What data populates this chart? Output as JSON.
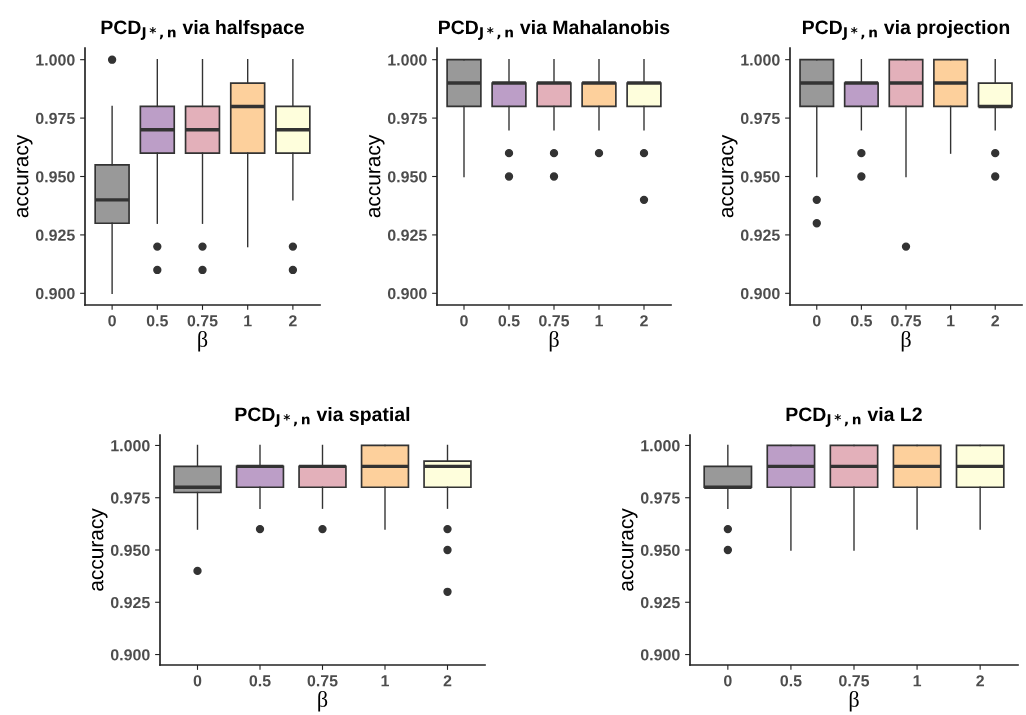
{
  "chart_data": [
    {
      "type": "box",
      "title": "PCD$_{J*,n}$ via halfspace",
      "xlabel": "β",
      "ylabel": "accuracy",
      "categories": [
        "0",
        "0.5",
        "0.75",
        "1",
        "2"
      ],
      "colors": [
        "#999999",
        "#bc9ec7",
        "#e3b0ba",
        "#fdd09c",
        "#fefedc"
      ],
      "ylim": [
        0.895,
        1.005
      ],
      "yticks": [
        {
          "value": 0.9,
          "label": "0.900"
        },
        {
          "value": 0.925,
          "label": "0.925"
        },
        {
          "value": 0.95,
          "label": "0.950"
        },
        {
          "value": 0.975,
          "label": "0.975"
        },
        {
          "value": 1.0,
          "label": "1.000"
        }
      ],
      "grid": false,
      "boxes": [
        {
          "low": 0.9,
          "q1": 0.93,
          "median": 0.94,
          "q3": 0.955,
          "high": 0.98,
          "outliers": [
            1.0
          ]
        },
        {
          "low": 0.93,
          "q1": 0.96,
          "median": 0.97,
          "q3": 0.98,
          "high": 1.0,
          "outliers": [
            0.92,
            0.91
          ]
        },
        {
          "low": 0.93,
          "q1": 0.96,
          "median": 0.97,
          "q3": 0.98,
          "high": 1.0,
          "outliers": [
            0.92,
            0.91
          ]
        },
        {
          "low": 0.92,
          "q1": 0.96,
          "median": 0.98,
          "q3": 0.99,
          "high": 1.0
        },
        {
          "low": 0.94,
          "q1": 0.96,
          "median": 0.97,
          "q3": 0.98,
          "high": 1.0,
          "outliers": [
            0.92,
            0.91
          ]
        }
      ]
    },
    {
      "type": "box",
      "title": "PCD$_{J*,n}$ via Mahalanobis",
      "xlabel": "β",
      "ylabel": "accuracy",
      "categories": [
        "0",
        "0.5",
        "0.75",
        "1",
        "2"
      ],
      "colors": [
        "#999999",
        "#bc9ec7",
        "#e3b0ba",
        "#fdd09c",
        "#fefedc"
      ],
      "ylim": [
        0.895,
        1.005
      ],
      "yticks": [
        {
          "value": 0.9,
          "label": "0.900"
        },
        {
          "value": 0.925,
          "label": "0.925"
        },
        {
          "value": 0.95,
          "label": "0.950"
        },
        {
          "value": 0.975,
          "label": "0.975"
        },
        {
          "value": 1.0,
          "label": "1.000"
        }
      ],
      "grid": false,
      "boxes": [
        {
          "low": 0.95,
          "q1": 0.98,
          "median": 0.99,
          "q3": 1.0,
          "high": 1.0
        },
        {
          "low": 0.97,
          "q1": 0.98,
          "median": 0.99,
          "q3": 0.99,
          "high": 1.0,
          "outliers": [
            0.96,
            0.95
          ]
        },
        {
          "low": 0.97,
          "q1": 0.98,
          "median": 0.99,
          "q3": 0.99,
          "high": 1.0,
          "outliers": [
            0.96,
            0.95
          ]
        },
        {
          "low": 0.97,
          "q1": 0.98,
          "median": 0.99,
          "q3": 0.99,
          "high": 1.0,
          "outliers": [
            0.96
          ]
        },
        {
          "low": 0.97,
          "q1": 0.98,
          "median": 0.99,
          "q3": 0.99,
          "high": 1.0,
          "outliers": [
            0.96,
            0.94
          ]
        }
      ]
    },
    {
      "type": "box",
      "title": "PCD$_{J*,n}$ via projection",
      "xlabel": "β",
      "ylabel": "accuracy",
      "categories": [
        "0",
        "0.5",
        "0.75",
        "1",
        "2"
      ],
      "colors": [
        "#999999",
        "#bc9ec7",
        "#e3b0ba",
        "#fdd09c",
        "#fefedc"
      ],
      "ylim": [
        0.895,
        1.005
      ],
      "yticks": [
        {
          "value": 0.9,
          "label": "0.900"
        },
        {
          "value": 0.925,
          "label": "0.925"
        },
        {
          "value": 0.95,
          "label": "0.950"
        },
        {
          "value": 0.975,
          "label": "0.975"
        },
        {
          "value": 1.0,
          "label": "1.000"
        }
      ],
      "grid": false,
      "boxes": [
        {
          "low": 0.95,
          "q1": 0.98,
          "median": 0.99,
          "q3": 1.0,
          "high": 1.0,
          "outliers": [
            0.94,
            0.93
          ]
        },
        {
          "low": 0.97,
          "q1": 0.98,
          "median": 0.99,
          "q3": 0.99,
          "high": 1.0,
          "outliers": [
            0.96,
            0.95
          ]
        },
        {
          "low": 0.95,
          "q1": 0.98,
          "median": 0.99,
          "q3": 1.0,
          "high": 1.0,
          "outliers": [
            0.92
          ]
        },
        {
          "low": 0.96,
          "q1": 0.98,
          "median": 0.99,
          "q3": 1.0,
          "high": 1.0
        },
        {
          "low": 0.97,
          "q1": 0.98,
          "median": 0.98,
          "q3": 0.99,
          "high": 1.0,
          "outliers": [
            0.96,
            0.95
          ]
        }
      ]
    },
    {
      "type": "box",
      "title": "PCD$_{J*,n}$ via spatial",
      "xlabel": "β",
      "ylabel": "accuracy",
      "categories": [
        "0",
        "0.5",
        "0.75",
        "1",
        "2"
      ],
      "colors": [
        "#999999",
        "#bc9ec7",
        "#e3b0ba",
        "#fdd09c",
        "#fefedc"
      ],
      "ylim": [
        0.895,
        1.005
      ],
      "yticks": [
        {
          "value": 0.9,
          "label": "0.900"
        },
        {
          "value": 0.925,
          "label": "0.925"
        },
        {
          "value": 0.95,
          "label": "0.950"
        },
        {
          "value": 0.975,
          "label": "0.975"
        },
        {
          "value": 1.0,
          "label": "1.000"
        }
      ],
      "grid": false,
      "boxes": [
        {
          "low": 0.96,
          "q1": 0.9775,
          "median": 0.98,
          "q3": 0.99,
          "high": 1.0,
          "outliers": [
            0.94
          ]
        },
        {
          "low": 0.97,
          "q1": 0.98,
          "median": 0.99,
          "q3": 0.99,
          "high": 1.0,
          "outliers": [
            0.96
          ]
        },
        {
          "low": 0.97,
          "q1": 0.98,
          "median": 0.99,
          "q3": 0.99,
          "high": 1.0,
          "outliers": [
            0.96
          ]
        },
        {
          "low": 0.96,
          "q1": 0.98,
          "median": 0.99,
          "q3": 1.0,
          "high": 1.0
        },
        {
          "low": 0.97,
          "q1": 0.98,
          "median": 0.99,
          "q3": 0.9925,
          "high": 1.0,
          "outliers": [
            0.96,
            0.95,
            0.93
          ]
        }
      ]
    },
    {
      "type": "box",
      "title": "PCD$_{J*,n}$ via L2",
      "xlabel": "β",
      "ylabel": "accuracy",
      "categories": [
        "0",
        "0.5",
        "0.75",
        "1",
        "2"
      ],
      "colors": [
        "#999999",
        "#bc9ec7",
        "#e3b0ba",
        "#fdd09c",
        "#fefedc"
      ],
      "ylim": [
        0.895,
        1.005
      ],
      "yticks": [
        {
          "value": 0.9,
          "label": "0.900"
        },
        {
          "value": 0.925,
          "label": "0.925"
        },
        {
          "value": 0.95,
          "label": "0.950"
        },
        {
          "value": 0.975,
          "label": "0.975"
        },
        {
          "value": 1.0,
          "label": "1.000"
        }
      ],
      "grid": false,
      "boxes": [
        {
          "low": 0.97,
          "q1": 0.98,
          "median": 0.98,
          "q3": 0.99,
          "high": 1.0,
          "outliers": [
            0.96,
            0.95
          ]
        },
        {
          "low": 0.95,
          "q1": 0.98,
          "median": 0.99,
          "q3": 1.0,
          "high": 1.0
        },
        {
          "low": 0.95,
          "q1": 0.98,
          "median": 0.99,
          "q3": 1.0,
          "high": 1.0
        },
        {
          "low": 0.96,
          "q1": 0.98,
          "median": 0.99,
          "q3": 1.0,
          "high": 1.0
        },
        {
          "low": 0.96,
          "q1": 0.98,
          "median": 0.99,
          "q3": 1.0,
          "high": 1.0
        }
      ]
    }
  ]
}
